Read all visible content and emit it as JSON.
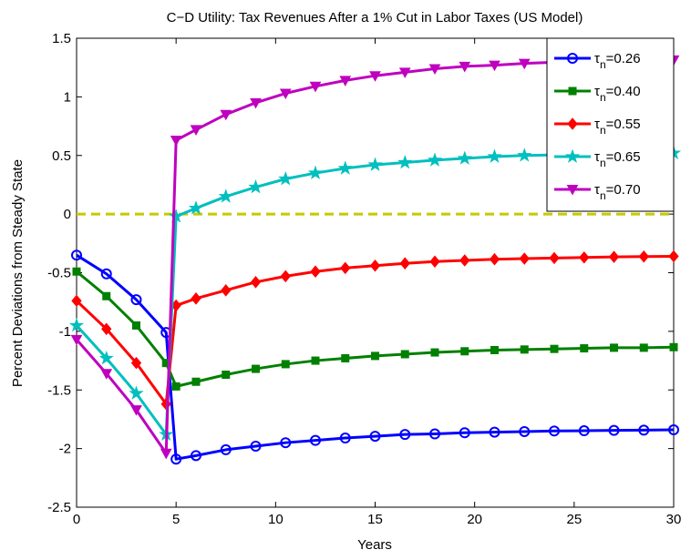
{
  "chart_data": {
    "type": "line",
    "title": "C−D Utility: Tax Revenues After a 1% Cut in Labor Taxes (US Model)",
    "x_label": "Years",
    "y_label": "Percent Deviations from Steady State",
    "x": [
      0,
      1.5,
      3,
      4.5,
      5,
      6,
      7.5,
      9,
      10.5,
      12,
      13.5,
      15,
      16.5,
      18,
      19.5,
      21,
      22.5,
      24,
      25.5,
      27,
      28.5,
      30
    ],
    "series": [
      {
        "name": "τn=0.26",
        "color": "#0000ff",
        "marker": "circle",
        "values": [
          -0.35,
          -0.51,
          -0.73,
          -1.01,
          -2.09,
          -2.06,
          -2.01,
          -1.98,
          -1.95,
          -1.93,
          -1.91,
          -1.895,
          -1.88,
          -1.875,
          -1.865,
          -1.86,
          -1.855,
          -1.85,
          -1.848,
          -1.845,
          -1.843,
          -1.84
        ]
      },
      {
        "name": "τn=0.40",
        "color": "#008000",
        "marker": "square",
        "values": [
          -0.49,
          -0.7,
          -0.95,
          -1.27,
          -1.47,
          -1.43,
          -1.37,
          -1.32,
          -1.28,
          -1.25,
          -1.23,
          -1.21,
          -1.195,
          -1.18,
          -1.17,
          -1.16,
          -1.155,
          -1.15,
          -1.145,
          -1.14,
          -1.14,
          -1.135
        ]
      },
      {
        "name": "τn=0.55",
        "color": "#ff0000",
        "marker": "diamond",
        "values": [
          -0.74,
          -0.98,
          -1.27,
          -1.62,
          -0.78,
          -0.72,
          -0.65,
          -0.58,
          -0.53,
          -0.49,
          -0.46,
          -0.44,
          -0.42,
          -0.405,
          -0.395,
          -0.385,
          -0.38,
          -0.375,
          -0.37,
          -0.365,
          -0.362,
          -0.36
        ]
      },
      {
        "name": "τn=0.65",
        "color": "#00bfbf",
        "marker": "star",
        "values": [
          -0.95,
          -1.23,
          -1.53,
          -1.88,
          -0.02,
          0.05,
          0.15,
          0.23,
          0.3,
          0.35,
          0.39,
          0.42,
          0.44,
          0.46,
          0.475,
          0.49,
          0.5,
          0.505,
          0.51,
          0.515,
          0.52,
          0.52
        ]
      },
      {
        "name": "τn=0.70",
        "color": "#bf00bf",
        "marker": "triangle-down",
        "values": [
          -1.07,
          -1.36,
          -1.67,
          -2.04,
          0.63,
          0.72,
          0.85,
          0.95,
          1.03,
          1.09,
          1.14,
          1.18,
          1.21,
          1.24,
          1.26,
          1.27,
          1.285,
          1.295,
          1.3,
          1.305,
          1.31,
          1.315
        ]
      }
    ],
    "hline": {
      "value": 0,
      "color": "#c8c800",
      "style": "dashed"
    },
    "xlim": [
      0,
      30
    ],
    "xticks": [
      0,
      5,
      10,
      15,
      20,
      25,
      30
    ],
    "ylim": [
      -2.5,
      1.5
    ],
    "yticks": [
      -2.5,
      -2,
      -1.5,
      -1,
      -0.5,
      0,
      0.5,
      1,
      1.5
    ],
    "legend": "top-right",
    "grid": false
  }
}
